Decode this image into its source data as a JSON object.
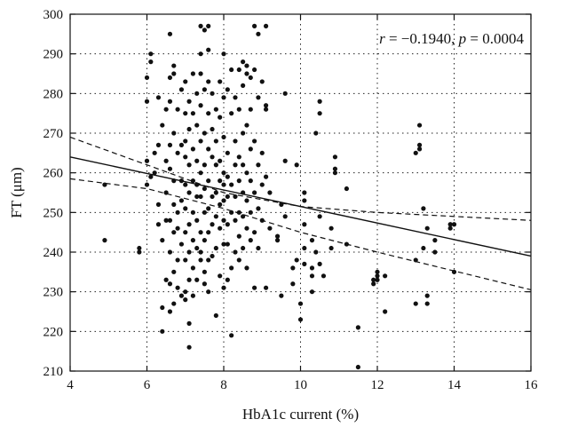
{
  "chart_data": {
    "type": "scatter",
    "title": "",
    "xlabel": "HbA1c current (%)",
    "ylabel": "FT (μm)",
    "xlim": [
      4,
      16
    ],
    "ylim": [
      210,
      300
    ],
    "xticks": [
      4,
      6,
      8,
      10,
      12,
      14,
      16
    ],
    "yticks": [
      210,
      220,
      230,
      240,
      250,
      260,
      270,
      280,
      290,
      300
    ],
    "grid": true,
    "annotation": {
      "r_symbol": "r",
      "r_text": " = −0.1940, ",
      "p_symbol": "p",
      "p_text": " = 0.0004"
    },
    "regression_line": {
      "x": [
        4,
        16
      ],
      "y": [
        264,
        239
      ]
    },
    "confidence_band_upper": {
      "x": [
        4,
        8,
        10,
        12,
        16
      ],
      "y": [
        269,
        255,
        251.5,
        250,
        248
      ]
    },
    "confidence_band_lower": {
      "x": [
        4,
        6,
        8,
        10,
        12,
        16
      ],
      "y": [
        258.5,
        256,
        251,
        245,
        240,
        230.5
      ]
    },
    "points": [
      [
        4.9,
        257
      ],
      [
        4.9,
        243
      ],
      [
        5.8,
        241
      ],
      [
        5.8,
        240
      ],
      [
        6.0,
        284
      ],
      [
        6.0,
        278
      ],
      [
        6.0,
        263
      ],
      [
        6.0,
        257
      ],
      [
        6.1,
        290
      ],
      [
        6.1,
        288
      ],
      [
        6.1,
        259
      ],
      [
        6.2,
        265
      ],
      [
        6.2,
        260
      ],
      [
        6.3,
        279
      ],
      [
        6.3,
        267
      ],
      [
        6.3,
        252
      ],
      [
        6.3,
        247
      ],
      [
        6.4,
        272
      ],
      [
        6.4,
        243
      ],
      [
        6.4,
        226
      ],
      [
        6.4,
        220
      ],
      [
        6.5,
        276
      ],
      [
        6.5,
        263
      ],
      [
        6.5,
        255
      ],
      [
        6.5,
        248
      ],
      [
        6.5,
        233
      ],
      [
        6.6,
        295
      ],
      [
        6.6,
        284
      ],
      [
        6.6,
        278
      ],
      [
        6.6,
        267
      ],
      [
        6.6,
        261
      ],
      [
        6.6,
        248
      ],
      [
        6.6,
        240
      ],
      [
        6.6,
        232
      ],
      [
        6.6,
        225
      ],
      [
        6.7,
        287
      ],
      [
        6.7,
        285
      ],
      [
        6.7,
        270
      ],
      [
        6.7,
        258
      ],
      [
        6.7,
        252
      ],
      [
        6.7,
        245
      ],
      [
        6.7,
        235
      ],
      [
        6.7,
        227
      ],
      [
        6.8,
        276
      ],
      [
        6.8,
        265
      ],
      [
        6.8,
        250
      ],
      [
        6.8,
        246
      ],
      [
        6.8,
        238
      ],
      [
        6.8,
        231
      ],
      [
        6.9,
        281
      ],
      [
        6.9,
        267
      ],
      [
        6.9,
        258
      ],
      [
        6.9,
        253
      ],
      [
        6.9,
        242
      ],
      [
        6.9,
        229
      ],
      [
        7.0,
        283
      ],
      [
        7.0,
        275
      ],
      [
        7.0,
        268
      ],
      [
        7.0,
        264
      ],
      [
        7.0,
        257
      ],
      [
        7.0,
        251
      ],
      [
        7.0,
        245
      ],
      [
        7.0,
        238
      ],
      [
        7.0,
        230
      ],
      [
        7.0,
        228
      ],
      [
        7.1,
        278
      ],
      [
        7.1,
        271
      ],
      [
        7.1,
        262
      ],
      [
        7.1,
        255
      ],
      [
        7.1,
        247
      ],
      [
        7.1,
        240
      ],
      [
        7.1,
        233
      ],
      [
        7.1,
        222
      ],
      [
        7.1,
        216
      ],
      [
        7.2,
        285
      ],
      [
        7.2,
        275
      ],
      [
        7.2,
        266
      ],
      [
        7.2,
        258
      ],
      [
        7.2,
        250
      ],
      [
        7.2,
        243
      ],
      [
        7.2,
        236
      ],
      [
        7.2,
        229
      ],
      [
        7.3,
        280
      ],
      [
        7.3,
        272
      ],
      [
        7.3,
        263
      ],
      [
        7.3,
        257
      ],
      [
        7.3,
        254
      ],
      [
        7.3,
        248
      ],
      [
        7.3,
        241
      ],
      [
        7.3,
        233
      ],
      [
        7.4,
        297
      ],
      [
        7.4,
        290
      ],
      [
        7.4,
        285
      ],
      [
        7.4,
        277
      ],
      [
        7.4,
        268
      ],
      [
        7.4,
        260
      ],
      [
        7.4,
        254
      ],
      [
        7.4,
        245
      ],
      [
        7.4,
        240
      ],
      [
        7.4,
        238
      ],
      [
        7.5,
        296
      ],
      [
        7.5,
        281
      ],
      [
        7.5,
        270
      ],
      [
        7.5,
        262
      ],
      [
        7.5,
        256
      ],
      [
        7.5,
        250
      ],
      [
        7.5,
        243
      ],
      [
        7.5,
        235
      ],
      [
        7.5,
        232
      ],
      [
        7.6,
        297
      ],
      [
        7.6,
        291
      ],
      [
        7.6,
        283
      ],
      [
        7.6,
        275
      ],
      [
        7.6,
        266
      ],
      [
        7.6,
        258
      ],
      [
        7.6,
        251
      ],
      [
        7.6,
        245
      ],
      [
        7.6,
        238
      ],
      [
        7.6,
        230
      ],
      [
        7.7,
        280
      ],
      [
        7.7,
        271
      ],
      [
        7.7,
        264
      ],
      [
        7.7,
        254
      ],
      [
        7.7,
        247
      ],
      [
        7.7,
        239
      ],
      [
        7.8,
        276
      ],
      [
        7.8,
        268
      ],
      [
        7.8,
        262
      ],
      [
        7.8,
        255
      ],
      [
        7.8,
        249
      ],
      [
        7.8,
        241
      ],
      [
        7.8,
        224
      ],
      [
        7.9,
        283
      ],
      [
        7.9,
        274
      ],
      [
        7.9,
        263
      ],
      [
        7.9,
        258
      ],
      [
        7.9,
        252
      ],
      [
        7.9,
        246
      ],
      [
        7.9,
        234
      ],
      [
        8.0,
        290
      ],
      [
        8.0,
        279
      ],
      [
        8.0,
        269
      ],
      [
        8.0,
        260
      ],
      [
        8.0,
        257
      ],
      [
        8.0,
        253
      ],
      [
        8.0,
        248
      ],
      [
        8.0,
        242
      ],
      [
        8.0,
        231
      ],
      [
        8.1,
        281
      ],
      [
        8.1,
        265
      ],
      [
        8.1,
        259
      ],
      [
        8.1,
        254
      ],
      [
        8.1,
        247
      ],
      [
        8.1,
        242
      ],
      [
        8.1,
        233
      ],
      [
        8.2,
        286
      ],
      [
        8.2,
        275
      ],
      [
        8.2,
        257
      ],
      [
        8.2,
        250
      ],
      [
        8.2,
        236
      ],
      [
        8.2,
        219
      ],
      [
        8.3,
        279
      ],
      [
        8.3,
        268
      ],
      [
        8.3,
        262
      ],
      [
        8.3,
        254
      ],
      [
        8.3,
        248
      ],
      [
        8.3,
        240
      ],
      [
        8.4,
        286
      ],
      [
        8.4,
        276
      ],
      [
        8.4,
        264
      ],
      [
        8.4,
        258
      ],
      [
        8.4,
        250
      ],
      [
        8.4,
        244
      ],
      [
        8.4,
        238
      ],
      [
        8.5,
        288
      ],
      [
        8.5,
        282
      ],
      [
        8.5,
        270
      ],
      [
        8.5,
        262
      ],
      [
        8.5,
        255
      ],
      [
        8.5,
        249
      ],
      [
        8.5,
        241
      ],
      [
        8.6,
        287
      ],
      [
        8.6,
        285
      ],
      [
        8.6,
        272
      ],
      [
        8.6,
        260
      ],
      [
        8.6,
        253
      ],
      [
        8.6,
        246
      ],
      [
        8.6,
        236
      ],
      [
        8.7,
        284
      ],
      [
        8.7,
        276
      ],
      [
        8.7,
        266
      ],
      [
        8.7,
        258
      ],
      [
        8.7,
        250
      ],
      [
        8.7,
        243
      ],
      [
        8.8,
        297
      ],
      [
        8.8,
        286
      ],
      [
        8.8,
        268
      ],
      [
        8.8,
        255
      ],
      [
        8.8,
        245
      ],
      [
        8.8,
        231
      ],
      [
        8.9,
        295
      ],
      [
        8.9,
        279
      ],
      [
        8.9,
        262
      ],
      [
        8.9,
        251
      ],
      [
        8.9,
        241
      ],
      [
        9.0,
        283
      ],
      [
        9.0,
        265
      ],
      [
        9.0,
        257
      ],
      [
        9.0,
        248
      ],
      [
        9.1,
        297
      ],
      [
        9.1,
        277
      ],
      [
        9.1,
        276
      ],
      [
        9.1,
        259
      ],
      [
        9.1,
        231
      ],
      [
        9.2,
        255
      ],
      [
        9.2,
        246
      ],
      [
        9.4,
        244
      ],
      [
        9.4,
        243
      ],
      [
        9.5,
        252
      ],
      [
        9.5,
        229
      ],
      [
        9.6,
        280
      ],
      [
        9.6,
        263
      ],
      [
        9.6,
        249
      ],
      [
        9.8,
        236
      ],
      [
        9.8,
        232
      ],
      [
        9.9,
        262
      ],
      [
        9.9,
        238
      ],
      [
        10.0,
        227
      ],
      [
        10.0,
        223
      ],
      [
        10.1,
        255
      ],
      [
        10.1,
        253
      ],
      [
        10.1,
        247
      ],
      [
        10.1,
        241
      ],
      [
        10.1,
        237
      ],
      [
        10.3,
        243
      ],
      [
        10.3,
        236
      ],
      [
        10.3,
        234
      ],
      [
        10.3,
        230
      ],
      [
        10.4,
        270
      ],
      [
        10.4,
        240
      ],
      [
        10.5,
        278
      ],
      [
        10.5,
        275
      ],
      [
        10.5,
        249
      ],
      [
        10.5,
        237
      ],
      [
        10.6,
        234
      ],
      [
        10.8,
        246
      ],
      [
        10.8,
        241
      ],
      [
        10.9,
        264
      ],
      [
        10.9,
        261
      ],
      [
        10.9,
        260
      ],
      [
        11.2,
        256
      ],
      [
        11.2,
        242
      ],
      [
        11.5,
        221
      ],
      [
        11.5,
        211
      ],
      [
        11.9,
        233
      ],
      [
        11.9,
        232
      ],
      [
        12.0,
        235
      ],
      [
        12.0,
        234
      ],
      [
        12.0,
        233
      ],
      [
        12.2,
        234
      ],
      [
        12.2,
        225
      ],
      [
        13.0,
        265
      ],
      [
        13.0,
        238
      ],
      [
        13.0,
        227
      ],
      [
        13.1,
        272
      ],
      [
        13.1,
        266
      ],
      [
        13.1,
        267
      ],
      [
        13.2,
        251
      ],
      [
        13.2,
        241
      ],
      [
        13.3,
        246
      ],
      [
        13.3,
        227
      ],
      [
        13.3,
        229
      ],
      [
        13.5,
        243
      ],
      [
        13.5,
        240
      ],
      [
        13.9,
        247
      ],
      [
        13.9,
        246
      ],
      [
        14.0,
        247
      ],
      [
        14.0,
        235
      ]
    ]
  }
}
